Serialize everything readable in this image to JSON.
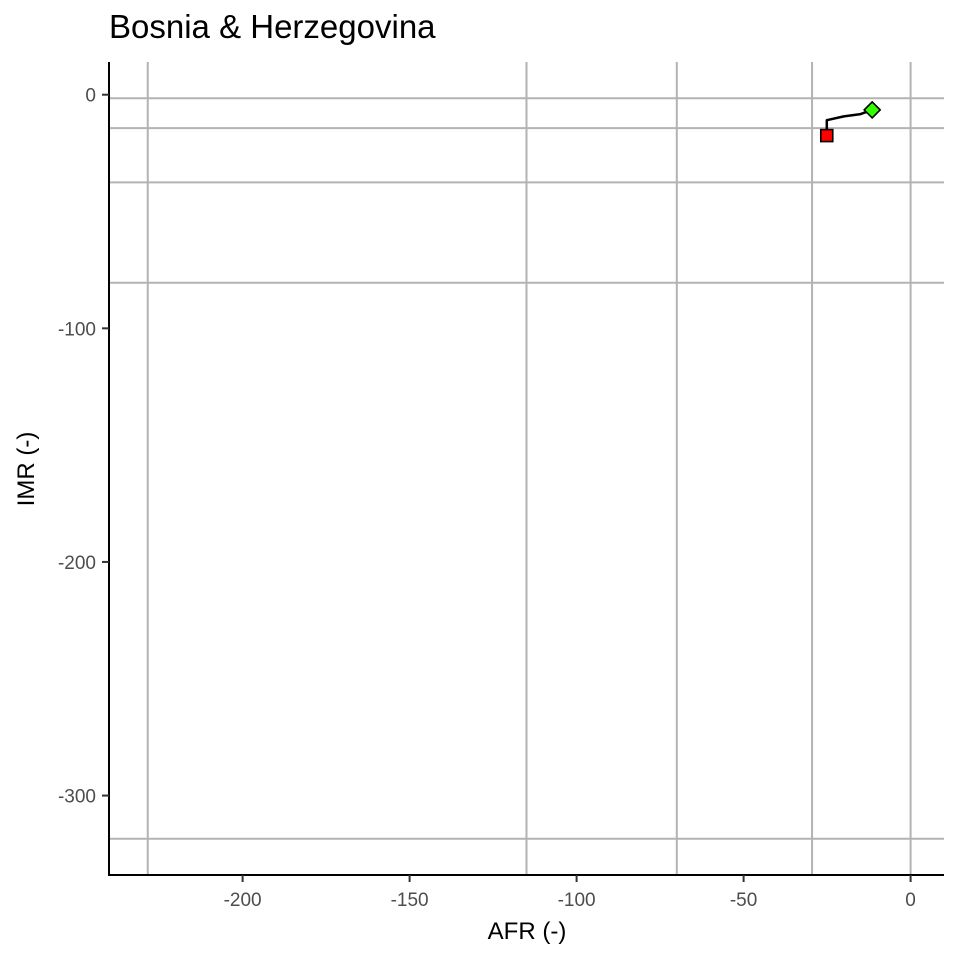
{
  "chart_data": {
    "type": "scatter",
    "title": "Bosnia & Herzegovina",
    "xlabel": "AFR (-)",
    "ylabel": "IMR (-)",
    "xlim": [
      -240,
      10
    ],
    "ylim": [
      -334,
      14
    ],
    "x_ticks": [
      -200,
      -150,
      -100,
      -50,
      0
    ],
    "y_ticks": [
      0,
      -100,
      -200,
      -300
    ],
    "x_tick_labels": [
      "-200",
      "-150",
      "-100",
      "-50",
      "0"
    ],
    "y_tick_labels": [
      "0",
      "-100",
      "-200",
      "-300"
    ],
    "grid": true,
    "reference_lines": {
      "vertical_x": [
        -228.4,
        -115.0,
        -70.0,
        -29.5,
        0.0
      ],
      "horizontal_y": [
        -1.5,
        -14.3,
        -37.5,
        -80.5,
        -318.5
      ]
    },
    "series": [
      {
        "path": [
          {
            "x": -25.1,
            "y": -17.5
          },
          {
            "x": -25.1,
            "y": -10.9
          },
          {
            "x": -20.0,
            "y": -9.3
          },
          {
            "x": -15.0,
            "y": -8.3
          },
          {
            "x": -11.5,
            "y": -6.5
          }
        ],
        "line_color": "#000000"
      }
    ],
    "markers": [
      {
        "x": -25.1,
        "y": -17.5,
        "shape": "square",
        "color": "#ff0000"
      },
      {
        "x": -11.5,
        "y": -6.5,
        "shape": "diamond",
        "color": "#33ff00"
      }
    ],
    "colors": {
      "grid": "#b3b3b3",
      "axis": "#000000",
      "tick_label": "#4d4d4d",
      "title": "#000000"
    }
  }
}
